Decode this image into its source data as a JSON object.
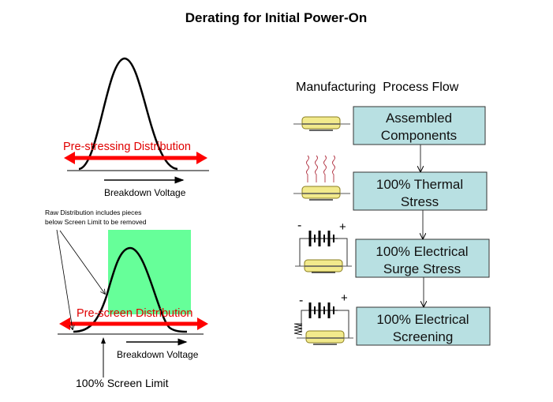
{
  "title": "Derating for Initial Power-On",
  "left": {
    "top_panel": {
      "distribution_label": "Pre-stressing Distribution",
      "axis_label": "Breakdown Voltage"
    },
    "bottom_panel": {
      "annotation_line1": "Raw Distribution includes pieces",
      "annotation_line2": "below Screen Limit to be removed",
      "distribution_label": "Pre-screen Distribution",
      "axis_label": "Breakdown Voltage",
      "screen_limit_label": "100% Screen Limit"
    },
    "colors": {
      "distribution_arrow": "#ff0000",
      "screen_region": "#66ff99"
    }
  },
  "flow": {
    "heading": "Manufacturing  Process Flow",
    "steps": [
      {
        "line1": "Assembled",
        "line2": "Components",
        "icon": "component-icon"
      },
      {
        "line1": "100% Thermal",
        "line2": "Stress",
        "icon": "heat-component-icon"
      },
      {
        "line1": "100% Electrical",
        "line2": "Surge Stress",
        "icon": "battery-circuit-icon"
      },
      {
        "line1": "100% Electrical",
        "line2": "Screening",
        "icon": "battery-resistor-circuit-icon"
      }
    ],
    "polarity_minus": "-",
    "polarity_plus": "+",
    "box_color": "#b8e0e2"
  }
}
